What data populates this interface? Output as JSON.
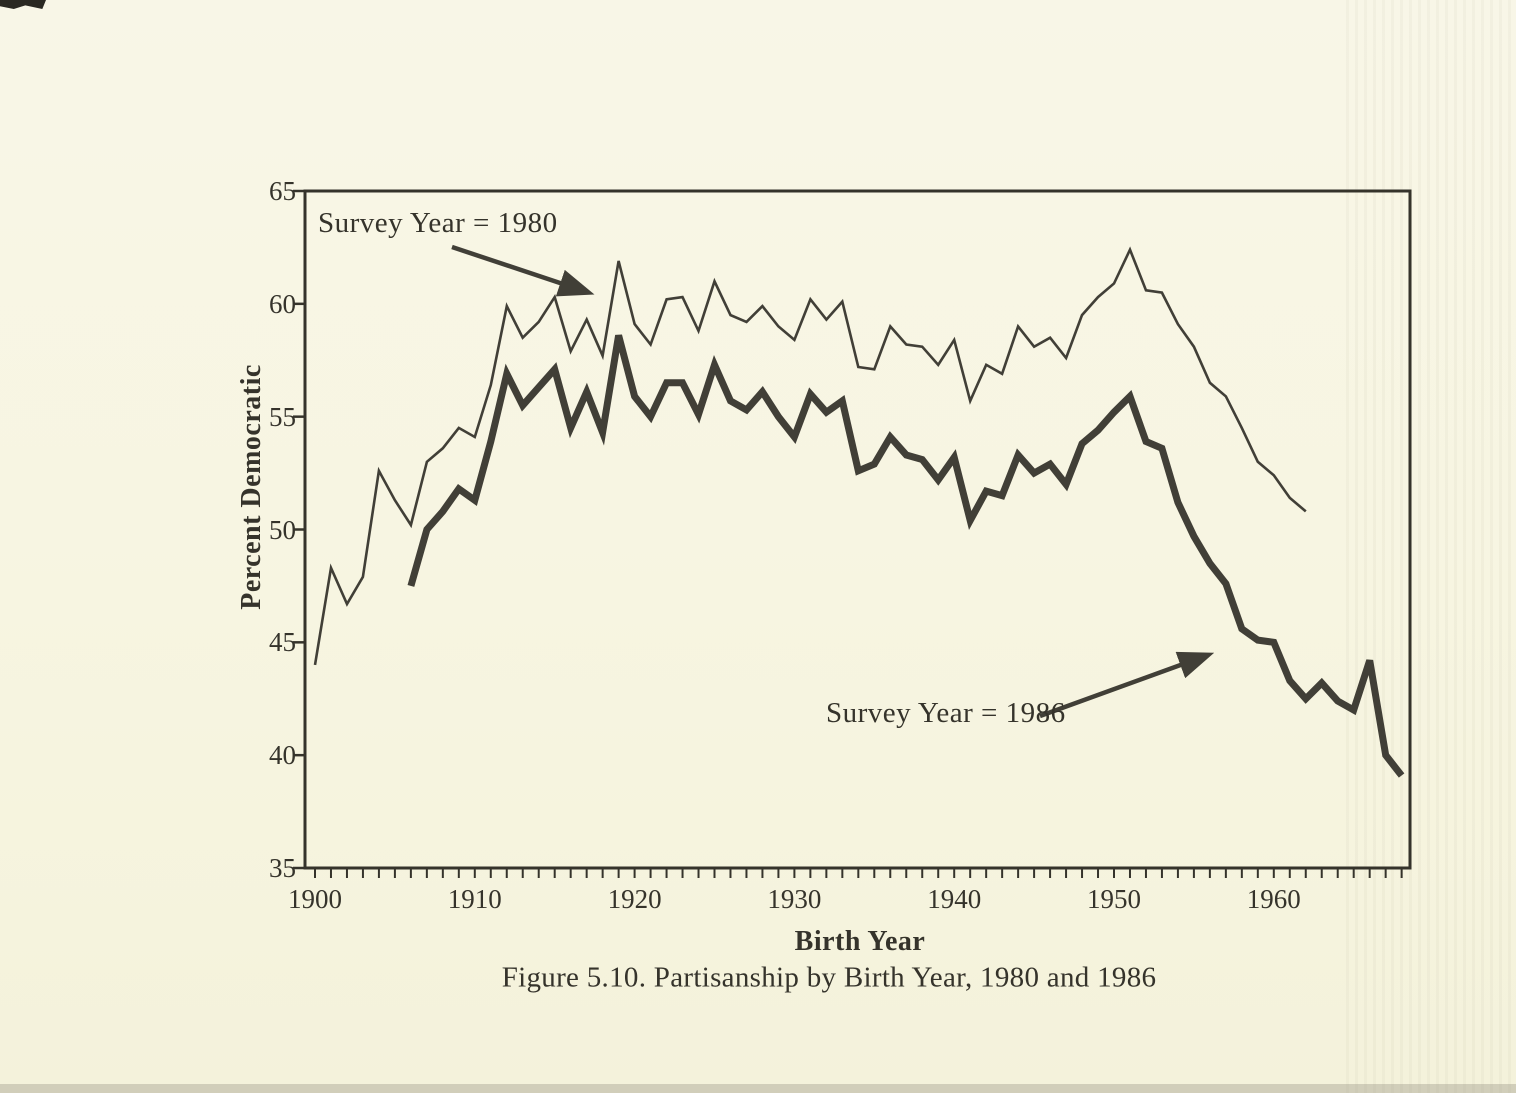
{
  "colors": {
    "paper": "#f7f5e1",
    "ink": "#35332b",
    "line": "#413f37"
  },
  "chart_data": {
    "type": "line",
    "caption": "Figure 5.10. Partisanship by Birth Year, 1980 and 1986",
    "xlabel": "Birth Year",
    "ylabel": "Percent Democratic",
    "grid": false,
    "legend_position": "none (labels with arrows inside plot)",
    "x_axis": {
      "min": 1900,
      "max": 1968,
      "tick_interval": 1,
      "label_interval": 10,
      "tick_labels": [
        "1900",
        "1910",
        "1920",
        "1930",
        "1940",
        "1950",
        "1960"
      ]
    },
    "y_axis": {
      "min": 35,
      "max": 65,
      "tick_interval": 5,
      "tick_labels": [
        "65",
        "60",
        "55",
        "50",
        "45",
        "40",
        "35"
      ]
    },
    "annotations": [
      {
        "text": "Survey Year = 1980",
        "refers_to_series": "Survey Year = 1980",
        "has_arrow": true
      },
      {
        "text": "Survey Year = 1986",
        "refers_to_series": "Survey Year = 1986",
        "has_arrow": true
      }
    ],
    "series": [
      {
        "name": "Survey Year = 1980",
        "line_weight": "thin",
        "start_year": 1900,
        "end_year": 1962,
        "values": [
          44.0,
          48.3,
          46.7,
          47.9,
          52.6,
          51.3,
          50.2,
          53.0,
          53.6,
          54.5,
          54.1,
          56.4,
          59.9,
          58.5,
          59.2,
          60.3,
          57.9,
          59.3,
          57.7,
          61.9,
          59.1,
          58.2,
          60.2,
          60.3,
          58.8,
          61.0,
          59.5,
          59.2,
          59.9,
          59.0,
          58.4,
          60.2,
          59.3,
          60.1,
          57.2,
          57.1,
          59.0,
          58.2,
          58.1,
          57.3,
          58.4,
          55.7,
          57.3,
          56.9,
          59.0,
          58.1,
          58.5,
          57.6,
          59.5,
          60.3,
          60.9,
          62.4,
          60.6,
          60.5,
          59.1,
          58.1,
          56.5,
          55.9,
          54.5,
          53.0,
          52.4,
          51.4,
          50.8
        ]
      },
      {
        "name": "Survey Year = 1986",
        "line_weight": "thick",
        "start_year": 1906,
        "end_year": 1968,
        "values": [
          47.5,
          50.0,
          50.8,
          51.8,
          51.3,
          53.9,
          56.9,
          55.5,
          56.3,
          57.1,
          54.5,
          56.1,
          54.3,
          58.6,
          55.9,
          55.0,
          56.5,
          56.5,
          55.1,
          57.3,
          55.7,
          55.3,
          56.1,
          55.0,
          54.1,
          56.0,
          55.2,
          55.7,
          52.6,
          52.9,
          54.1,
          53.3,
          53.1,
          52.2,
          53.2,
          50.4,
          51.7,
          51.5,
          53.3,
          52.5,
          52.9,
          52.0,
          53.8,
          54.4,
          55.2,
          55.9,
          53.9,
          53.6,
          51.2,
          49.7,
          48.5,
          47.6,
          45.6,
          45.1,
          45.0,
          43.3,
          42.5,
          43.2,
          42.4,
          42.0,
          44.2,
          40.0,
          39.1
        ]
      }
    ]
  }
}
